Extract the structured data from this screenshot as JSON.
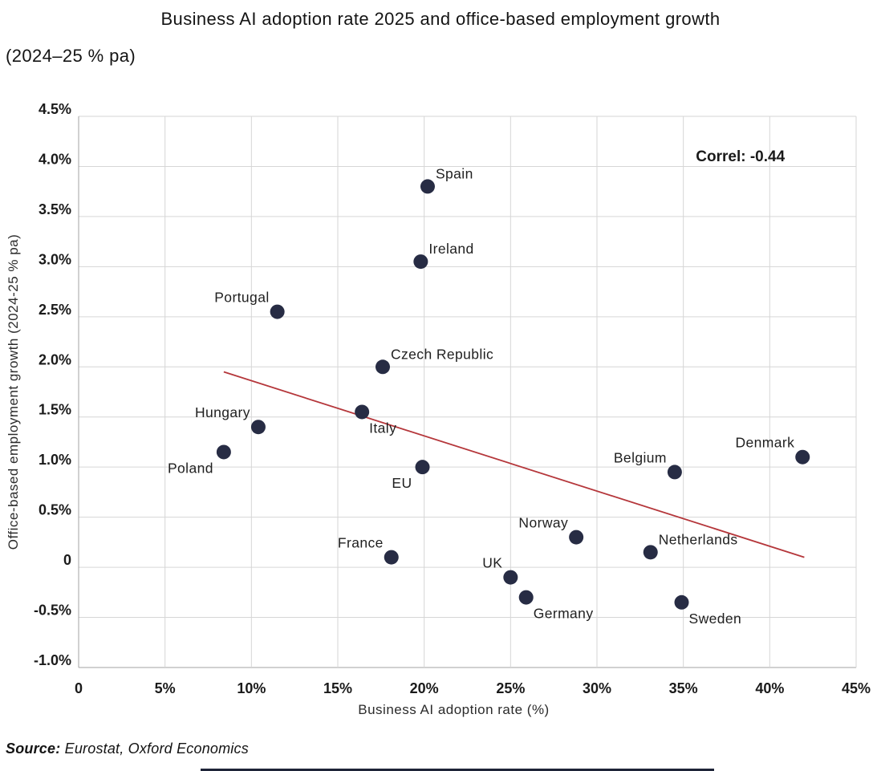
{
  "title": {
    "line1": "Business AI adoption rate 2025 and office-based employment growth",
    "line2": "(2024–25 % pa)"
  },
  "source": {
    "prefix": "Source:",
    "text": " Eurostat, Oxford Economics"
  },
  "footer_bar_color": "#1e2438",
  "chart_data": {
    "type": "scatter",
    "title": "Business AI adoption rate 2025 and office-based employment growth (2024–25 % pa)",
    "xlabel": "Business AI adoption rate (%)",
    "ylabel": "Office-based employment growth (2024-25 % pa)",
    "xlim": [
      0,
      45
    ],
    "ylim": [
      -1.0,
      4.5
    ],
    "grid": true,
    "x_ticks": {
      "values": [
        0,
        5,
        10,
        15,
        20,
        25,
        30,
        35,
        40,
        45
      ],
      "labels": [
        "0",
        "5%",
        "10%",
        "15%",
        "20%",
        "25%",
        "30%",
        "35%",
        "40%",
        "45%"
      ]
    },
    "y_ticks": {
      "values": [
        4.5,
        4.0,
        3.5,
        3.0,
        2.5,
        2.0,
        1.5,
        1.0,
        0.5,
        0,
        -0.5,
        -1.0
      ],
      "labels": [
        "4.5%",
        "4.0%",
        "3.5%",
        "3.0%",
        "2.5%",
        "2.0%",
        "1.5%",
        "1.0%",
        "0.5%",
        "0",
        "-0.5%",
        "-1.0%"
      ]
    },
    "annotation": {
      "text": "Correl: -0.44",
      "x": 38.3,
      "y": 4.05
    },
    "points": [
      {
        "name": "Spain",
        "x": 20.2,
        "y": 3.8,
        "label_pos": "top-right"
      },
      {
        "name": "Ireland",
        "x": 19.8,
        "y": 3.05,
        "label_pos": "top-right"
      },
      {
        "name": "Portugal",
        "x": 11.5,
        "y": 2.55,
        "label_pos": "top-left"
      },
      {
        "name": "Czech Republic",
        "x": 17.6,
        "y": 2.0,
        "label_pos": "top-right"
      },
      {
        "name": "Italy",
        "x": 16.4,
        "y": 1.55,
        "label_pos": "bottom-right"
      },
      {
        "name": "Hungary",
        "x": 10.4,
        "y": 1.4,
        "label_pos": "top-left"
      },
      {
        "name": "Poland",
        "x": 8.4,
        "y": 1.15,
        "label_pos": "bottom-left"
      },
      {
        "name": "EU",
        "x": 19.9,
        "y": 1.0,
        "label_pos": "bottom-left"
      },
      {
        "name": "Denmark",
        "x": 41.9,
        "y": 1.1,
        "label_pos": "top-left"
      },
      {
        "name": "Belgium",
        "x": 34.5,
        "y": 0.95,
        "label_pos": "top-left"
      },
      {
        "name": "Norway",
        "x": 28.8,
        "y": 0.3,
        "label_pos": "top-left"
      },
      {
        "name": "Netherlands",
        "x": 33.1,
        "y": 0.15,
        "label_pos": "top-right"
      },
      {
        "name": "France",
        "x": 18.1,
        "y": 0.1,
        "label_pos": "top-left"
      },
      {
        "name": "UK",
        "x": 25.0,
        "y": -0.1,
        "label_pos": "top-left"
      },
      {
        "name": "Germany",
        "x": 25.9,
        "y": -0.3,
        "label_pos": "bottom-right"
      },
      {
        "name": "Sweden",
        "x": 34.9,
        "y": -0.35,
        "label_pos": "bottom-right"
      }
    ],
    "trendline": {
      "x1": 8.4,
      "y1": 1.95,
      "x2": 42.0,
      "y2": 0.1
    },
    "colors": {
      "point": "#272c44",
      "trendline": "#b5373b",
      "grid": "#d6d6d6",
      "axis": "#a3a3a3",
      "text": "#1a1a1a",
      "label": "#1f1f1f",
      "axis_title": "#2b2b2b"
    }
  }
}
